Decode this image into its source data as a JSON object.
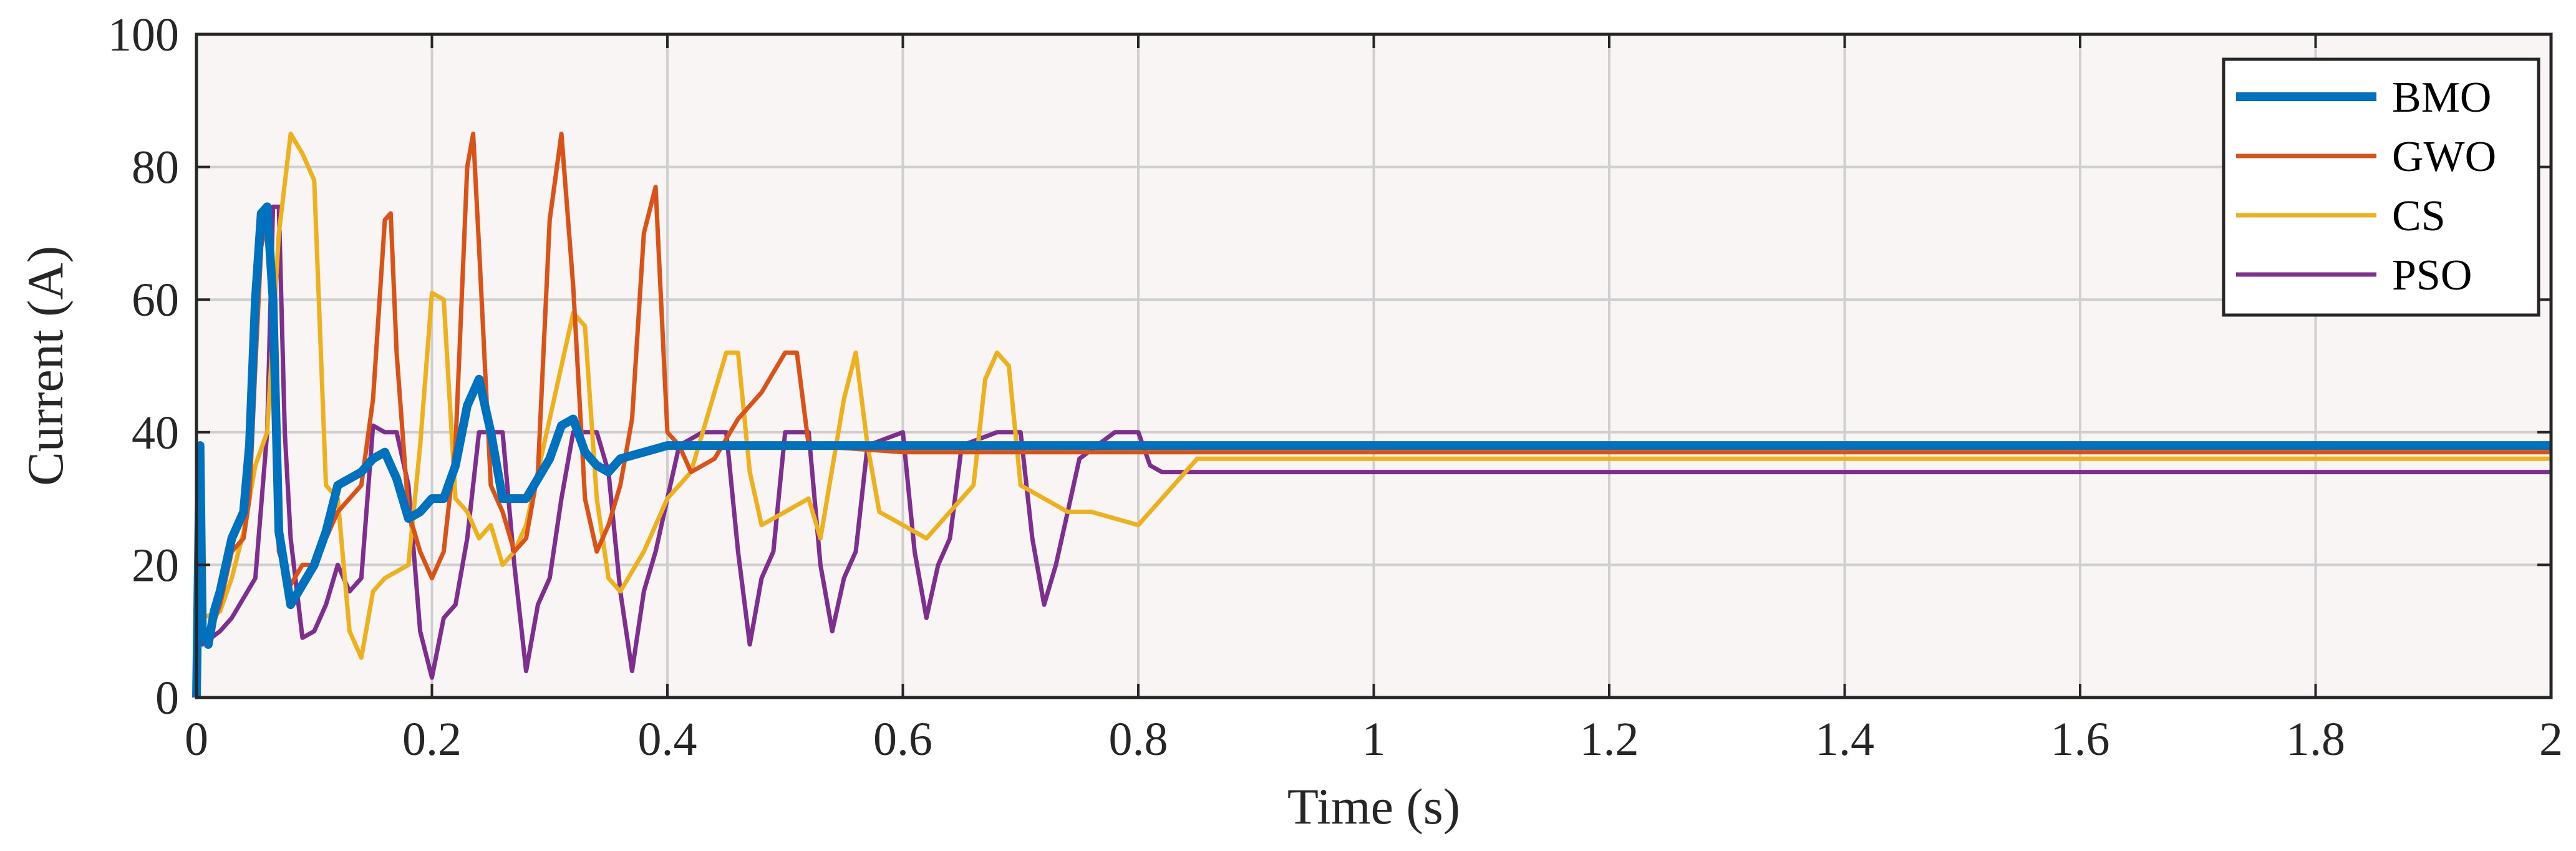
{
  "chart_data": {
    "type": "line",
    "title": "",
    "xlabel": "Time (s)",
    "ylabel": "Current (A)",
    "xlim": [
      0,
      2
    ],
    "ylim": [
      0,
      100
    ],
    "grid": true,
    "legend_position": "top-right",
    "plot_background": "#f9f5f4",
    "grid_color": "#cfcfcf",
    "x_ticks": [
      0,
      0.2,
      0.4,
      0.6,
      0.8,
      1,
      1.2,
      1.4,
      1.6,
      1.8,
      2
    ],
    "x_tick_labels": [
      "0",
      "0.2",
      "0.4",
      "0.6",
      "0.8",
      "1",
      "1.2",
      "1.4",
      "1.6",
      "1.8",
      "2"
    ],
    "y_ticks": [
      0,
      20,
      40,
      60,
      80,
      100
    ],
    "y_tick_labels": [
      "0",
      "20",
      "40",
      "60",
      "80",
      "100"
    ],
    "series": [
      {
        "name": "BMO",
        "color": "#0072bd",
        "points": [
          [
            0,
            0
          ],
          [
            0.003,
            38
          ],
          [
            0.005,
            10
          ],
          [
            0.01,
            8
          ],
          [
            0.015,
            13
          ],
          [
            0.02,
            16
          ],
          [
            0.025,
            20
          ],
          [
            0.03,
            24
          ],
          [
            0.035,
            26
          ],
          [
            0.04,
            28
          ],
          [
            0.045,
            38
          ],
          [
            0.05,
            60
          ],
          [
            0.055,
            73
          ],
          [
            0.06,
            74
          ],
          [
            0.065,
            60
          ],
          [
            0.07,
            25
          ],
          [
            0.08,
            14
          ],
          [
            0.09,
            17
          ],
          [
            0.1,
            20
          ],
          [
            0.11,
            25
          ],
          [
            0.12,
            32
          ],
          [
            0.13,
            33
          ],
          [
            0.14,
            34
          ],
          [
            0.15,
            36
          ],
          [
            0.16,
            37
          ],
          [
            0.17,
            33
          ],
          [
            0.18,
            27
          ],
          [
            0.19,
            28
          ],
          [
            0.2,
            30
          ],
          [
            0.21,
            30
          ],
          [
            0.22,
            35
          ],
          [
            0.23,
            44
          ],
          [
            0.24,
            48
          ],
          [
            0.25,
            40
          ],
          [
            0.26,
            30
          ],
          [
            0.28,
            30
          ],
          [
            0.3,
            36
          ],
          [
            0.31,
            41
          ],
          [
            0.32,
            42
          ],
          [
            0.33,
            37
          ],
          [
            0.34,
            35
          ],
          [
            0.35,
            34
          ],
          [
            0.36,
            36
          ],
          [
            0.38,
            37
          ],
          [
            0.4,
            38
          ],
          [
            2,
            38
          ]
        ]
      },
      {
        "name": "GWO",
        "color": "#d95319",
        "points": [
          [
            0,
            0
          ],
          [
            0.003,
            30
          ],
          [
            0.005,
            10
          ],
          [
            0.01,
            9
          ],
          [
            0.02,
            14
          ],
          [
            0.03,
            22
          ],
          [
            0.04,
            24
          ],
          [
            0.045,
            30
          ],
          [
            0.05,
            50
          ],
          [
            0.055,
            68
          ],
          [
            0.06,
            72
          ],
          [
            0.065,
            55
          ],
          [
            0.07,
            22
          ],
          [
            0.08,
            17
          ],
          [
            0.09,
            20
          ],
          [
            0.1,
            20
          ],
          [
            0.11,
            24
          ],
          [
            0.12,
            28
          ],
          [
            0.13,
            30
          ],
          [
            0.14,
            32
          ],
          [
            0.15,
            45
          ],
          [
            0.16,
            72
          ],
          [
            0.165,
            73
          ],
          [
            0.17,
            52
          ],
          [
            0.18,
            28
          ],
          [
            0.19,
            22
          ],
          [
            0.2,
            18
          ],
          [
            0.21,
            22
          ],
          [
            0.22,
            38
          ],
          [
            0.23,
            80
          ],
          [
            0.235,
            85
          ],
          [
            0.24,
            68
          ],
          [
            0.25,
            32
          ],
          [
            0.26,
            28
          ],
          [
            0.27,
            22
          ],
          [
            0.28,
            24
          ],
          [
            0.29,
            34
          ],
          [
            0.3,
            72
          ],
          [
            0.31,
            85
          ],
          [
            0.32,
            62
          ],
          [
            0.33,
            30
          ],
          [
            0.34,
            22
          ],
          [
            0.35,
            26
          ],
          [
            0.36,
            32
          ],
          [
            0.37,
            42
          ],
          [
            0.38,
            70
          ],
          [
            0.39,
            77
          ],
          [
            0.4,
            40
          ],
          [
            0.41,
            38
          ],
          [
            0.42,
            34
          ],
          [
            0.44,
            36
          ],
          [
            0.46,
            42
          ],
          [
            0.48,
            46
          ],
          [
            0.5,
            52
          ],
          [
            0.51,
            52
          ],
          [
            0.52,
            38
          ],
          [
            0.6,
            37
          ],
          [
            2,
            37
          ]
        ]
      },
      {
        "name": "CS",
        "color": "#edb120",
        "points": [
          [
            0,
            0
          ],
          [
            0.003,
            20
          ],
          [
            0.005,
            12
          ],
          [
            0.02,
            13
          ],
          [
            0.03,
            18
          ],
          [
            0.04,
            25
          ],
          [
            0.05,
            35
          ],
          [
            0.06,
            40
          ],
          [
            0.07,
            70
          ],
          [
            0.08,
            85
          ],
          [
            0.09,
            82
          ],
          [
            0.1,
            78
          ],
          [
            0.11,
            32
          ],
          [
            0.12,
            30
          ],
          [
            0.13,
            10
          ],
          [
            0.14,
            6
          ],
          [
            0.15,
            16
          ],
          [
            0.16,
            18
          ],
          [
            0.18,
            20
          ],
          [
            0.19,
            38
          ],
          [
            0.2,
            61
          ],
          [
            0.21,
            60
          ],
          [
            0.22,
            30
          ],
          [
            0.23,
            28
          ],
          [
            0.24,
            24
          ],
          [
            0.25,
            26
          ],
          [
            0.26,
            20
          ],
          [
            0.27,
            22
          ],
          [
            0.28,
            26
          ],
          [
            0.3,
            42
          ],
          [
            0.32,
            58
          ],
          [
            0.33,
            56
          ],
          [
            0.34,
            30
          ],
          [
            0.35,
            18
          ],
          [
            0.36,
            16
          ],
          [
            0.38,
            22
          ],
          [
            0.4,
            30
          ],
          [
            0.42,
            34
          ],
          [
            0.44,
            46
          ],
          [
            0.45,
            52
          ],
          [
            0.46,
            52
          ],
          [
            0.47,
            34
          ],
          [
            0.48,
            26
          ],
          [
            0.5,
            28
          ],
          [
            0.52,
            30
          ],
          [
            0.53,
            24
          ],
          [
            0.55,
            45
          ],
          [
            0.56,
            52
          ],
          [
            0.57,
            38
          ],
          [
            0.58,
            28
          ],
          [
            0.6,
            26
          ],
          [
            0.62,
            24
          ],
          [
            0.64,
            28
          ],
          [
            0.66,
            32
          ],
          [
            0.67,
            48
          ],
          [
            0.68,
            52
          ],
          [
            0.69,
            50
          ],
          [
            0.7,
            32
          ],
          [
            0.72,
            30
          ],
          [
            0.74,
            28
          ],
          [
            0.76,
            28
          ],
          [
            0.78,
            27
          ],
          [
            0.8,
            26
          ],
          [
            0.82,
            30
          ],
          [
            0.84,
            34
          ],
          [
            0.85,
            36
          ],
          [
            2,
            36
          ]
        ]
      },
      {
        "name": "PSO",
        "color": "#7e2f8e",
        "points": [
          [
            0,
            0
          ],
          [
            0.003,
            15
          ],
          [
            0.005,
            8
          ],
          [
            0.02,
            10
          ],
          [
            0.03,
            12
          ],
          [
            0.04,
            15
          ],
          [
            0.05,
            18
          ],
          [
            0.06,
            40
          ],
          [
            0.065,
            74
          ],
          [
            0.07,
            74
          ],
          [
            0.075,
            40
          ],
          [
            0.08,
            24
          ],
          [
            0.09,
            9
          ],
          [
            0.1,
            10
          ],
          [
            0.11,
            14
          ],
          [
            0.12,
            20
          ],
          [
            0.13,
            16
          ],
          [
            0.14,
            18
          ],
          [
            0.15,
            41
          ],
          [
            0.16,
            40
          ],
          [
            0.17,
            40
          ],
          [
            0.18,
            32
          ],
          [
            0.19,
            10
          ],
          [
            0.2,
            3
          ],
          [
            0.21,
            12
          ],
          [
            0.22,
            14
          ],
          [
            0.23,
            24
          ],
          [
            0.24,
            40
          ],
          [
            0.26,
            40
          ],
          [
            0.27,
            20
          ],
          [
            0.28,
            4
          ],
          [
            0.29,
            14
          ],
          [
            0.3,
            18
          ],
          [
            0.31,
            30
          ],
          [
            0.32,
            40
          ],
          [
            0.34,
            40
          ],
          [
            0.35,
            34
          ],
          [
            0.36,
            16
          ],
          [
            0.37,
            4
          ],
          [
            0.38,
            16
          ],
          [
            0.39,
            22
          ],
          [
            0.4,
            30
          ],
          [
            0.41,
            38
          ],
          [
            0.43,
            40
          ],
          [
            0.45,
            40
          ],
          [
            0.46,
            22
          ],
          [
            0.47,
            8
          ],
          [
            0.48,
            18
          ],
          [
            0.49,
            22
          ],
          [
            0.5,
            40
          ],
          [
            0.52,
            40
          ],
          [
            0.53,
            20
          ],
          [
            0.54,
            10
          ],
          [
            0.55,
            18
          ],
          [
            0.56,
            22
          ],
          [
            0.57,
            38
          ],
          [
            0.6,
            40
          ],
          [
            0.61,
            22
          ],
          [
            0.62,
            12
          ],
          [
            0.63,
            20
          ],
          [
            0.64,
            24
          ],
          [
            0.65,
            38
          ],
          [
            0.68,
            40
          ],
          [
            0.7,
            40
          ],
          [
            0.71,
            24
          ],
          [
            0.72,
            14
          ],
          [
            0.73,
            20
          ],
          [
            0.74,
            28
          ],
          [
            0.75,
            36
          ],
          [
            0.78,
            40
          ],
          [
            0.8,
            40
          ],
          [
            0.81,
            35
          ],
          [
            0.82,
            34
          ],
          [
            2,
            34
          ]
        ]
      }
    ]
  }
}
